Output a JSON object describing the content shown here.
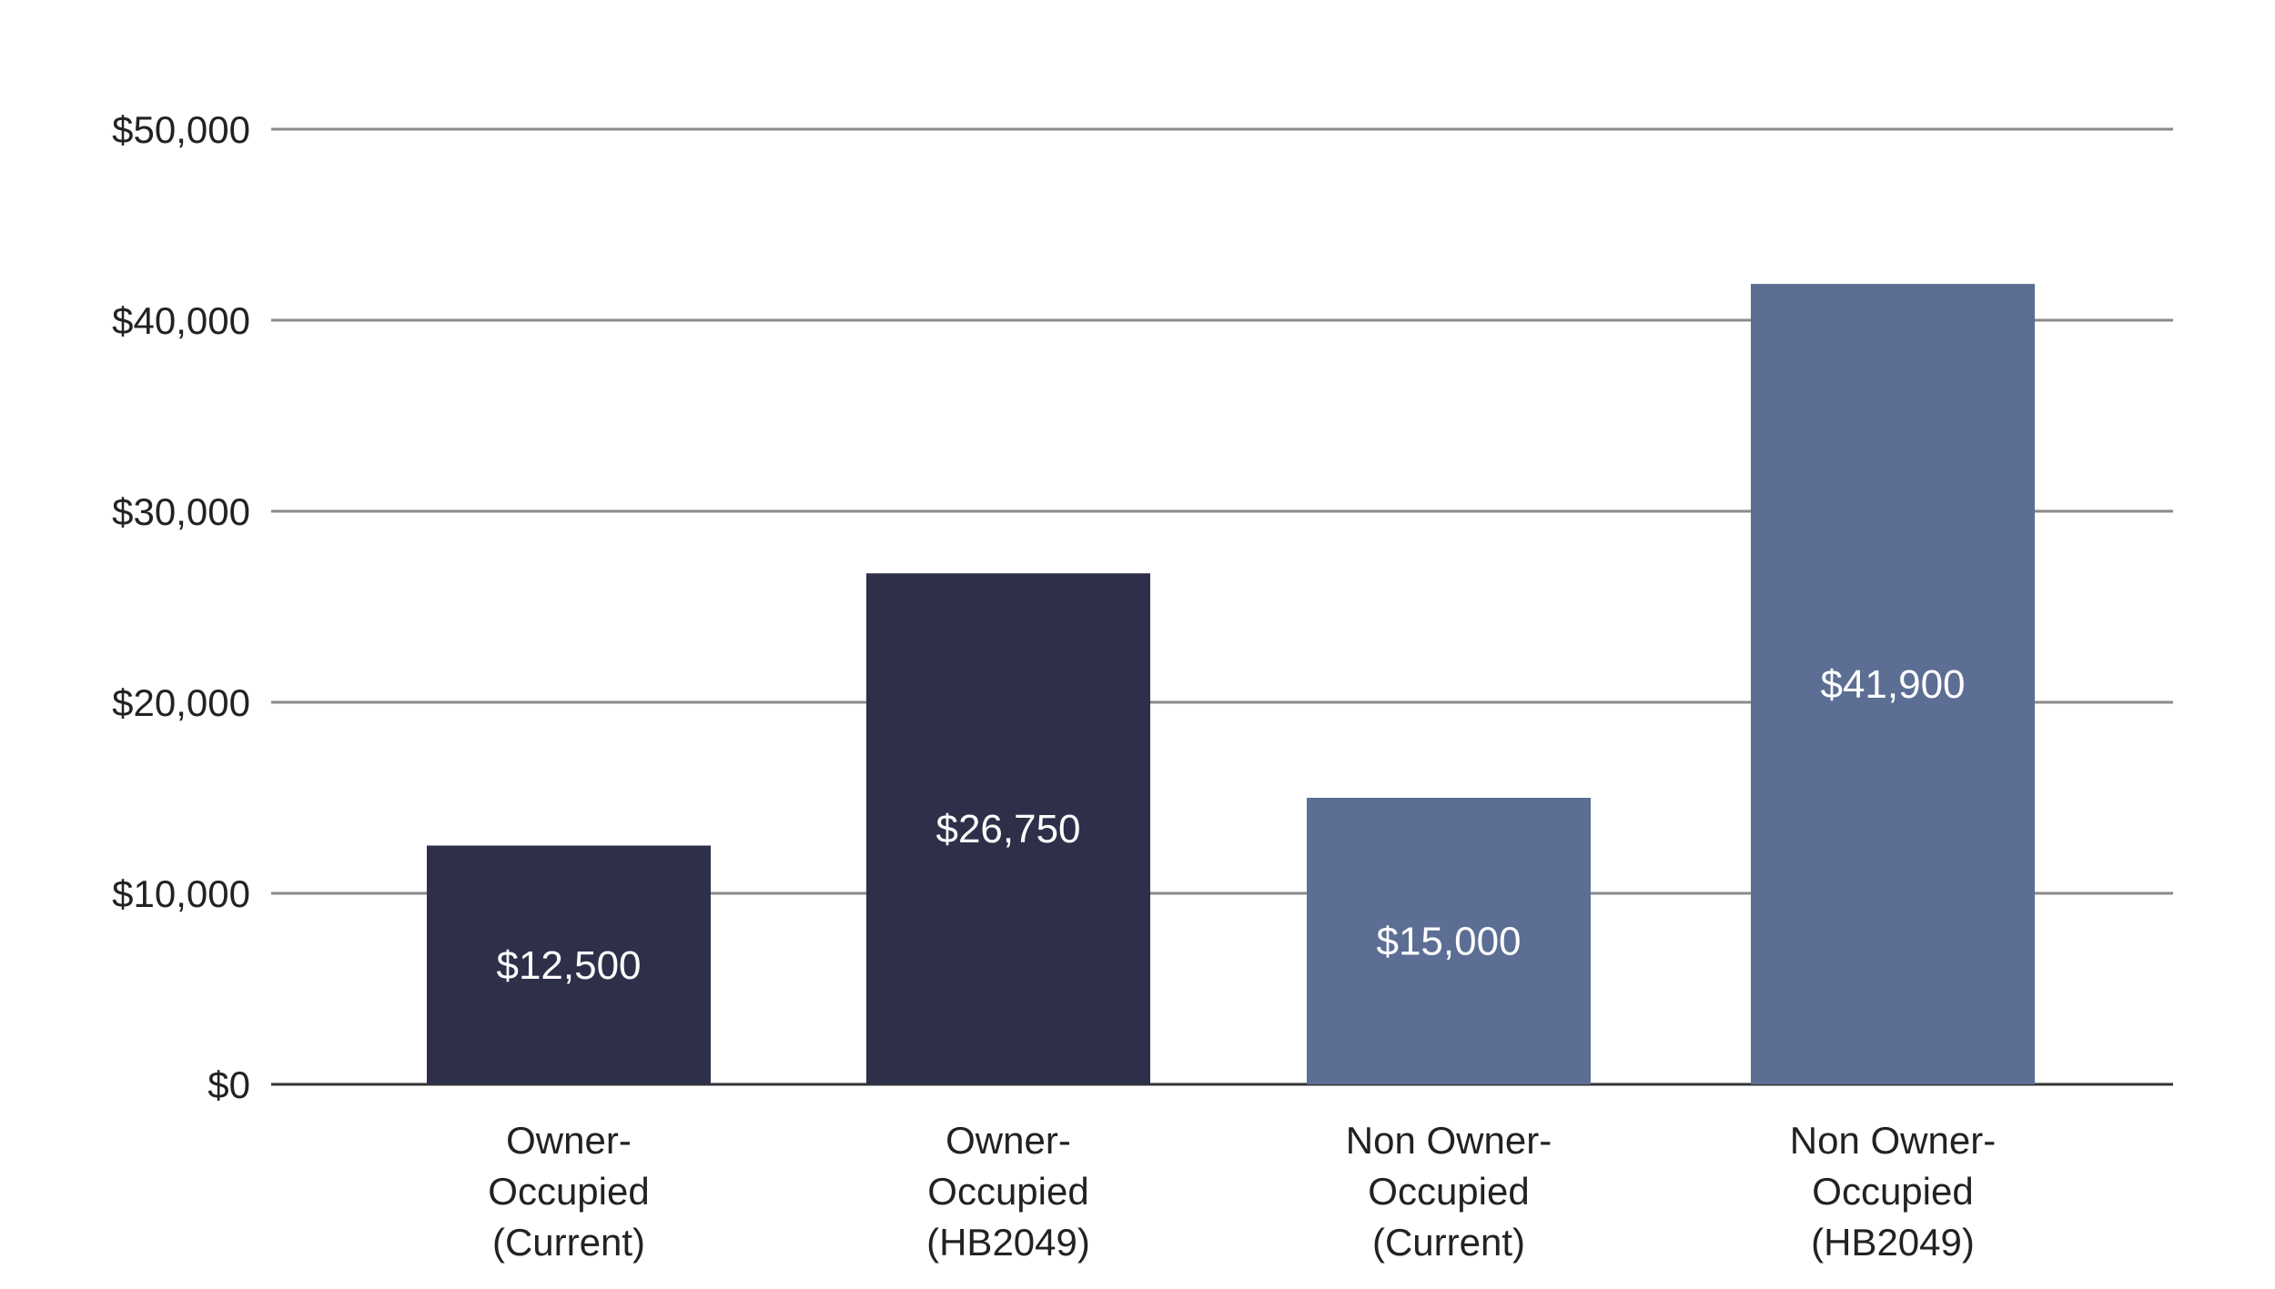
{
  "chart_data": {
    "type": "bar",
    "title": "",
    "xlabel": "",
    "ylabel": "",
    "ylim": [
      0,
      50000
    ],
    "yticks": [
      0,
      10000,
      20000,
      30000,
      40000,
      50000
    ],
    "ytick_labels": [
      "$0",
      "$10,000",
      "$20,000",
      "$30,000",
      "$40,000",
      "$50,000"
    ],
    "grid": true,
    "legend": "none",
    "categories": [
      [
        "Owner-",
        "Occupied",
        "(Current)"
      ],
      [
        "Owner-",
        "Occupied",
        "(HB2049)"
      ],
      [
        "Non Owner-",
        "Occupied",
        "(Current)"
      ],
      [
        "Non Owner-",
        "Occupied",
        "(HB2049)"
      ]
    ],
    "values": [
      12500,
      26750,
      15000,
      41900
    ],
    "data_labels": [
      "$12,500",
      "$26,750",
      "$15,000",
      "$41,900"
    ],
    "colors": [
      "#2e3049",
      "#2e3049",
      "#5c6e93",
      "#5c6e93"
    ]
  }
}
